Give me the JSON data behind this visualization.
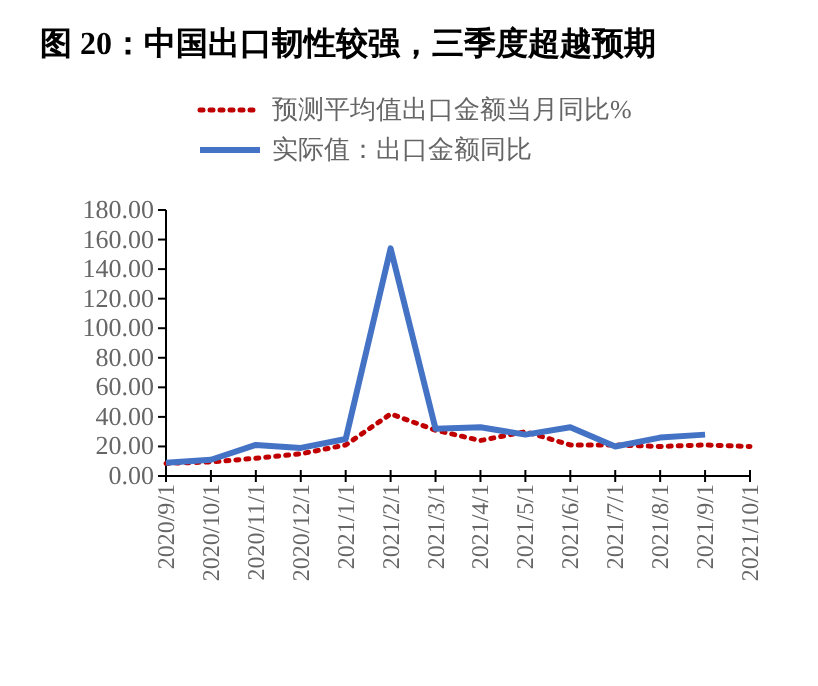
{
  "chart_data": {
    "type": "line",
    "title": "图  20：中国出口韧性较强，三季度超越预期",
    "categories": [
      "2020/9/1",
      "2020/10/1",
      "2020/11/1",
      "2020/12/1",
      "2021/1/1",
      "2021/2/1",
      "2021/3/1",
      "2021/4/1",
      "2021/5/1",
      "2021/6/1",
      "2021/7/1",
      "2021/8/1",
      "2021/9/1",
      "2021/10/1"
    ],
    "series": [
      {
        "name": "预测平均值出口金额当月同比%",
        "color": "#c00000",
        "line_style": "dotted",
        "values": [
          8.5,
          9.5,
          12,
          15,
          21,
          42,
          31,
          24,
          30,
          21,
          21,
          20,
          21,
          20
        ]
      },
      {
        "name": "实际值：出口金额同比",
        "color": "#4472c4",
        "line_style": "solid",
        "values": [
          9,
          11,
          21,
          19,
          25,
          154,
          32,
          33,
          28,
          33,
          20,
          26,
          28,
          null
        ]
      }
    ],
    "ylim": [
      0,
      180
    ],
    "yticks": [
      {
        "value": 0,
        "label": "0.00"
      },
      {
        "value": 20,
        "label": "20.00"
      },
      {
        "value": 40,
        "label": "40.00"
      },
      {
        "value": 60,
        "label": "60.00"
      },
      {
        "value": 80,
        "label": "80.00"
      },
      {
        "value": 100,
        "label": "100.00"
      },
      {
        "value": 120,
        "label": "120.00"
      },
      {
        "value": 140,
        "label": "140.00"
      },
      {
        "value": 160,
        "label": "160.00"
      },
      {
        "value": 180,
        "label": "180.00"
      }
    ],
    "grid": false,
    "legend": "top",
    "marker": "none"
  }
}
